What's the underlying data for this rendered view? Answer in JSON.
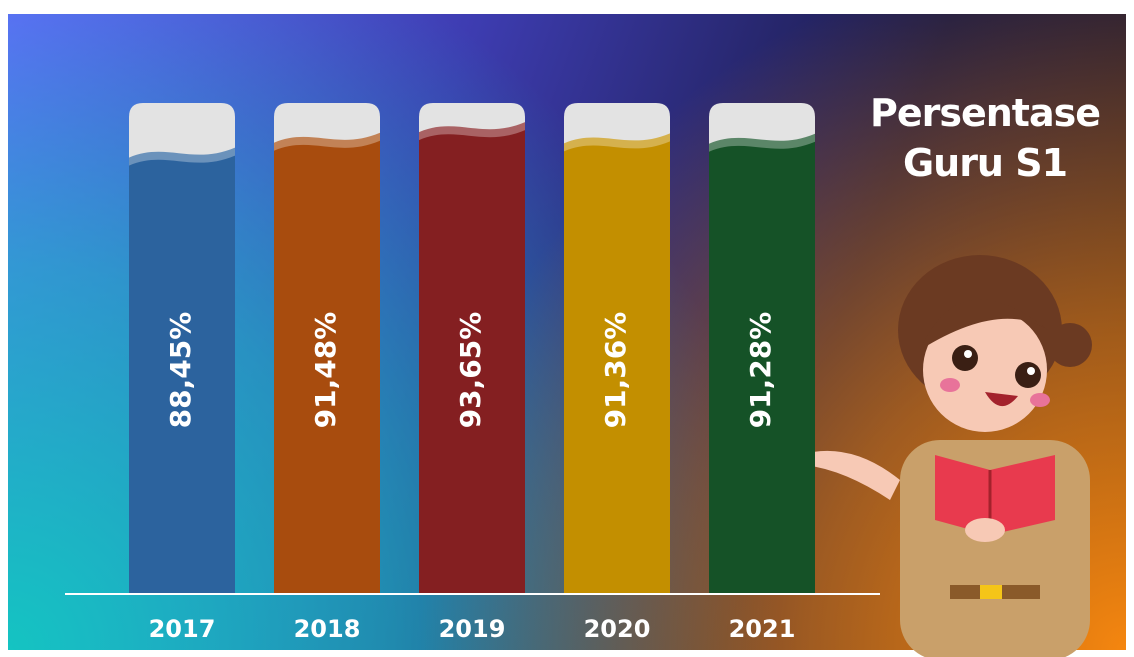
{
  "chart_data": {
    "type": "bar",
    "title": "Persentase Guru S1",
    "categories": [
      "2017",
      "2018",
      "2019",
      "2020",
      "2021"
    ],
    "values": [
      88.45,
      91.48,
      93.65,
      91.36,
      91.28
    ],
    "value_labels": [
      "88,45%",
      "91,48%",
      "93,65%",
      "91,36%",
      "91,28%"
    ],
    "colors": [
      "#2c639e",
      "#a84c0e",
      "#841f21",
      "#c38f00",
      "#155227"
    ],
    "ylim": [
      0,
      100
    ]
  }
}
